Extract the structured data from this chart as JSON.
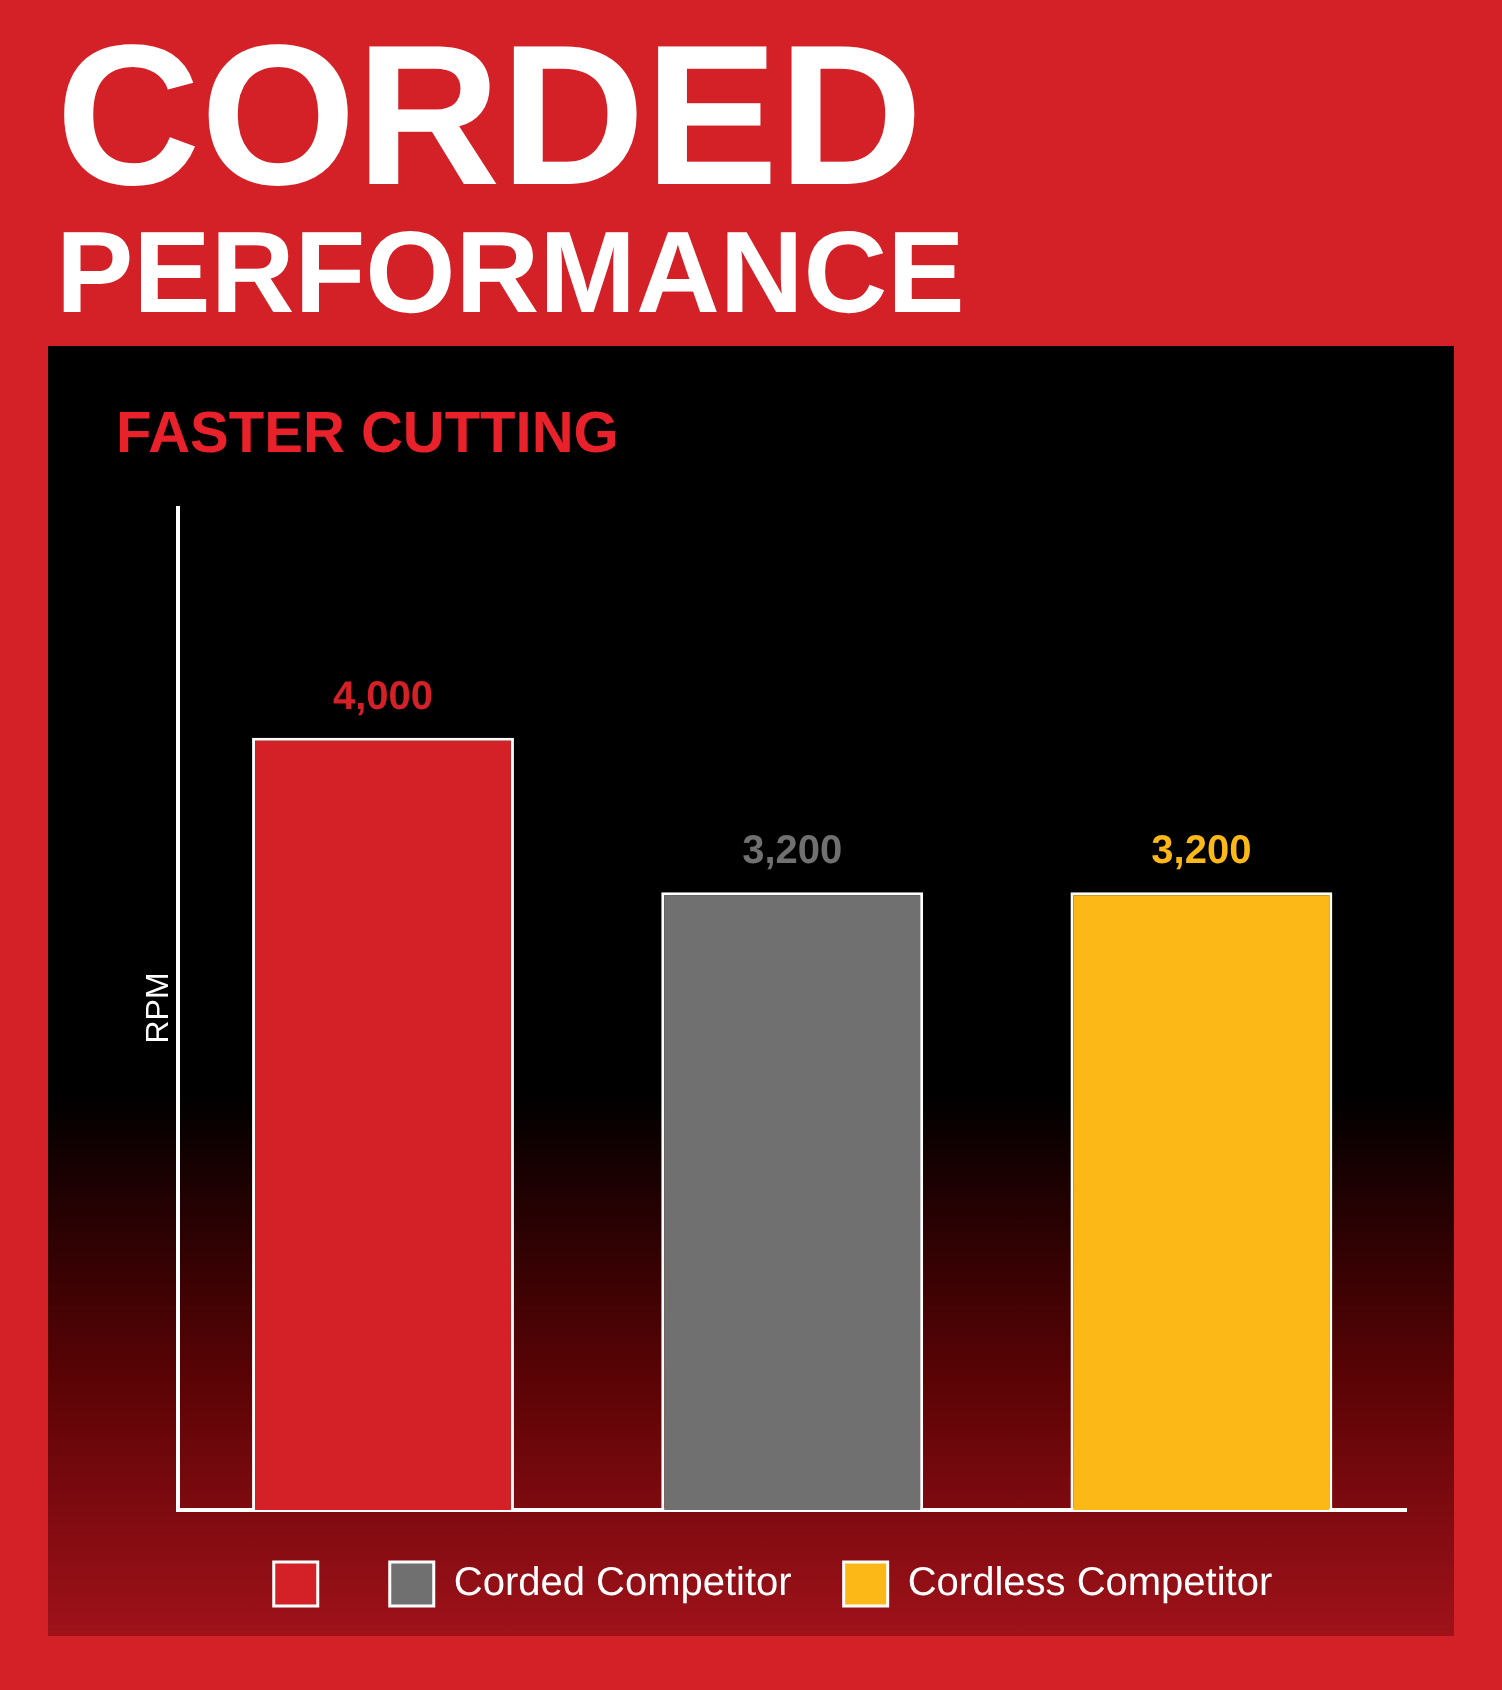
{
  "chart_data": {
    "type": "bar",
    "title": "CORDED\nPERFORMANCE",
    "subtitle": "FASTER CUTTING",
    "ylabel": "RPM",
    "categories": [
      null,
      null,
      null
    ],
    "stacked": true,
    "series": [
      {
        "color": "#d42027",
        "values": [
          4000,
          null,
          null
        ],
        "value_labels": [
          "4,000",
          null,
          null
        ]
      },
      {
        "name": "Corded Competitor",
        "color": "#707070",
        "values": [
          null,
          3200,
          null
        ],
        "value_labels": [
          null,
          "3,200",
          null
        ]
      },
      {
        "name": "Cordless Competitor",
        "color": "#fbb817",
        "values": [
          null,
          null,
          3200
        ],
        "value_labels": [
          null,
          null,
          "3,200"
        ]
      }
    ],
    "ylim": [
      0,
      5200
    ],
    "tick_labels": false,
    "grid": false,
    "legend": "bottom"
  }
}
